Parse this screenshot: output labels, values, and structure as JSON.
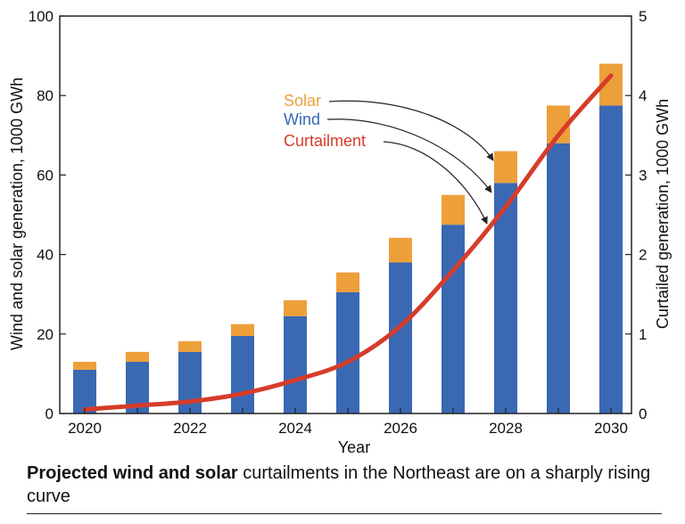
{
  "chart_data": {
    "type": "bar",
    "title": "",
    "xlabel": "Year",
    "ylabel_left": "Wind and solar generation, 1000 GWh",
    "ylabel_right": "Curtailed generation, 1000 GWh",
    "ylim_left": [
      0,
      100
    ],
    "ylim_right": [
      0,
      5
    ],
    "yticks_left": [
      "0",
      "20",
      "40",
      "60",
      "80",
      "100"
    ],
    "yticks_right": [
      "0",
      "1",
      "2",
      "3",
      "4",
      "5"
    ],
    "xtick_labels": [
      "2020",
      "2022",
      "2024",
      "2026",
      "2028",
      "2030"
    ],
    "categories": [
      2020,
      2021,
      2022,
      2023,
      2024,
      2025,
      2026,
      2027,
      2028,
      2029,
      2030
    ],
    "stacked": true,
    "grid": false,
    "series": [
      {
        "name": "Wind",
        "axis": "left",
        "color": "#3a68b3",
        "values": [
          11,
          13,
          15.5,
          19.5,
          24.5,
          30.5,
          38,
          47.5,
          58,
          68,
          77.5
        ]
      },
      {
        "name": "Solar",
        "axis": "left",
        "color": "#eda03a",
        "values": [
          2,
          2.5,
          2.7,
          3,
          4,
          5,
          6.2,
          7.5,
          8,
          9.5,
          10.5
        ]
      },
      {
        "name": "Curtailment",
        "axis": "right",
        "type": "line",
        "color": "#d63c2a",
        "values": [
          0.05,
          0.1,
          0.15,
          0.25,
          0.42,
          0.65,
          1.1,
          1.8,
          2.6,
          3.5,
          4.25
        ]
      }
    ],
    "legend": {
      "placement": "annotations with arrows",
      "labels": [
        "Solar",
        "Wind",
        "Curtailment"
      ]
    }
  },
  "caption": {
    "bold": "Projected wind and solar",
    "rest": " curtailments in the Northeast are on a sharply rising curve"
  }
}
